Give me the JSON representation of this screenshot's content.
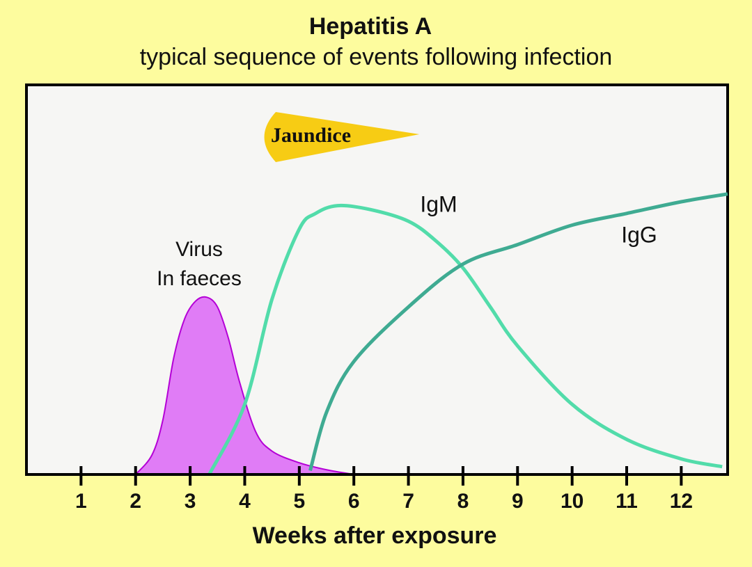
{
  "chart_data": {
    "type": "line",
    "title": "Hepatitis A",
    "subtitle": "typical sequence of events following infection",
    "x_label": "Weeks  after exposure",
    "xlim": [
      0,
      12.85
    ],
    "ylim": [
      0,
      100
    ],
    "xticks": [
      1,
      2,
      3,
      4,
      5,
      6,
      7,
      8,
      9,
      10,
      11,
      12
    ],
    "jaundice": {
      "label": "Jaundice",
      "x": [
        4.25,
        7.2
      ],
      "color": "#f7cc14"
    },
    "series": [
      {
        "name_lines": [
          "Virus",
          "In faeces"
        ],
        "color": "#b400d6",
        "fill": "#e07cf6",
        "area": true,
        "x": [
          2,
          2.3,
          2.5,
          2.7,
          2.9,
          3.1,
          3.3,
          3.5,
          3.7,
          3.9,
          4.2,
          4.5,
          5,
          5.5,
          6
        ],
        "values": [
          0,
          5,
          14,
          30,
          40,
          44.5,
          45.5,
          43,
          35,
          24,
          11,
          6,
          3,
          1.2,
          0
        ]
      },
      {
        "name": "IgM",
        "color": "#52dcaa",
        "x": [
          3.35,
          4,
          4.5,
          5,
          5.3,
          5.7,
          6.3,
          7,
          7.5,
          8,
          8.5,
          9,
          10,
          11,
          12,
          12.75
        ],
        "values": [
          0,
          18,
          45,
          63,
          67,
          69,
          68,
          65,
          60,
          53,
          43,
          33,
          18,
          9,
          4,
          2
        ]
      },
      {
        "name": "IgG",
        "color": "#3fab92",
        "x": [
          5.2,
          5.5,
          6,
          7,
          8,
          9,
          10,
          11,
          12,
          12.85
        ],
        "values": [
          1,
          16,
          29,
          43,
          54,
          59,
          64,
          67,
          70,
          72
        ]
      }
    ]
  }
}
